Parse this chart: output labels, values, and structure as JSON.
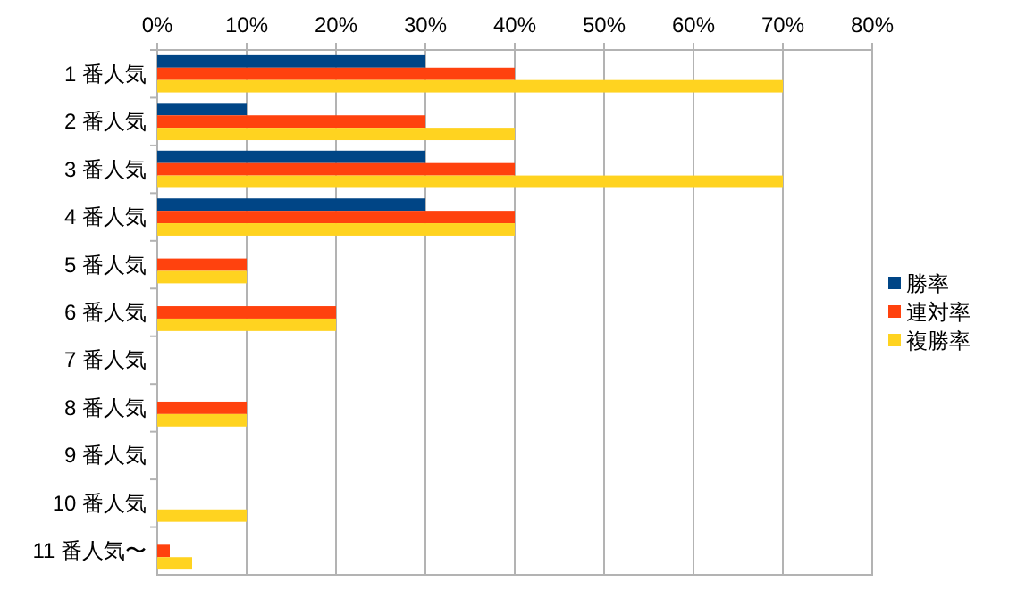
{
  "chart_data": {
    "type": "bar",
    "orientation": "horizontal",
    "categories": [
      "1 番人気",
      "2 番人気",
      "3 番人気",
      "4 番人気",
      "5 番人気",
      "6 番人気",
      "7 番人気",
      "8 番人気",
      "9 番人気",
      "10 番人気",
      "11 番人気〜"
    ],
    "series": [
      {
        "name": "勝率",
        "color": "#004586",
        "values": [
          30,
          10,
          30,
          30,
          0,
          0,
          0,
          0,
          0,
          0,
          0
        ]
      },
      {
        "name": "連対率",
        "color": "#ff420e",
        "values": [
          40,
          30,
          40,
          40,
          10,
          20,
          0,
          10,
          0,
          0,
          1.4
        ]
      },
      {
        "name": "複勝率",
        "color": "#ffd320",
        "values": [
          70,
          40,
          70,
          40,
          10,
          20,
          0,
          10,
          0,
          10,
          3.9
        ]
      }
    ],
    "xlim": [
      0,
      80
    ],
    "xticks": [
      {
        "value": 0,
        "label": "0%"
      },
      {
        "value": 10,
        "label": "10%"
      },
      {
        "value": 20,
        "label": "20%"
      },
      {
        "value": 30,
        "label": "30%"
      },
      {
        "value": 40,
        "label": "40%"
      },
      {
        "value": 50,
        "label": "50%"
      },
      {
        "value": 60,
        "label": "60%"
      },
      {
        "value": 70,
        "label": "70%"
      },
      {
        "value": 80,
        "label": "80%"
      }
    ],
    "grid": "x",
    "legend": "right"
  }
}
